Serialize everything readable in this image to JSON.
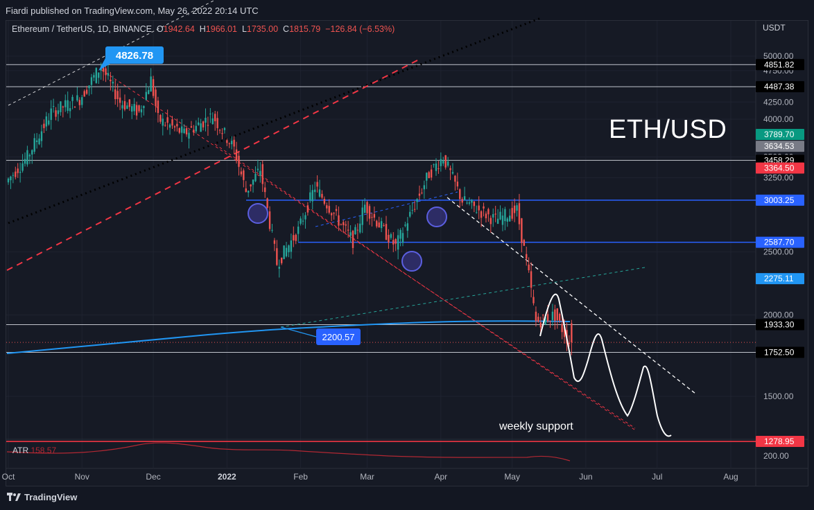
{
  "header": {
    "publish_text": "Fiardi published on TradingView.com, May 26, 2022 20:14 UTC"
  },
  "legend": {
    "symbol": "Ethereum / TetherUS, 1D, BINANCE",
    "o_label": "O",
    "o_value": "1942.64",
    "h_label": "H",
    "h_value": "1966.01",
    "l_label": "L",
    "l_value": "1735.00",
    "c_label": "C",
    "c_value": "1815.79",
    "change": "−126.84 (−6.53%)"
  },
  "axis": {
    "currency": "USDT"
  },
  "watermark_text": "ETH/USD",
  "annotations": {
    "weekly_support": "weekly support",
    "high_callout": "4826.78",
    "low_callout": "2200.57"
  },
  "atr": {
    "label": "ATR",
    "value": "158.57",
    "axis_tick": "200.00"
  },
  "footer": {
    "brand": "TradingView"
  },
  "colors": {
    "background": "#131722",
    "up": "#26a69a",
    "down": "#ef5350",
    "blue_level": "#2962ff",
    "ma": "#2196f3"
  },
  "chart_data": {
    "type": "candlestick",
    "title": "",
    "y_axis": {
      "scale": "log",
      "range": [
        1180,
        5450
      ],
      "ticks": [
        "5000.00",
        "4750.00",
        "4250.00",
        "4000.00",
        "3500.00",
        "3250.00",
        "2500.00",
        "2000.00",
        "1500.00"
      ]
    },
    "x_axis": {
      "ticks": [
        {
          "label": "Oct",
          "date": "2021-10-01"
        },
        {
          "label": "Nov",
          "date": "2021-11-01"
        },
        {
          "label": "Dec",
          "date": "2021-12-01"
        },
        {
          "label": "2022",
          "date": "2022-01-01"
        },
        {
          "label": "Feb",
          "date": "2022-02-01"
        },
        {
          "label": "Mar",
          "date": "2022-03-01"
        },
        {
          "label": "Apr",
          "date": "2022-04-01"
        },
        {
          "label": "May",
          "date": "2022-05-01"
        },
        {
          "label": "Jun",
          "date": "2022-06-01"
        },
        {
          "label": "Jul",
          "date": "2022-07-01"
        },
        {
          "label": "Aug",
          "date": "2022-08-01"
        }
      ]
    },
    "price_path": [
      {
        "date": "2021-10-01",
        "close": 3200
      },
      {
        "date": "2021-10-10",
        "close": 3500
      },
      {
        "date": "2021-10-20",
        "close": 4100
      },
      {
        "date": "2021-11-01",
        "close": 4300
      },
      {
        "date": "2021-11-10",
        "close": 4826
      },
      {
        "date": "2021-11-18",
        "close": 4250
      },
      {
        "date": "2021-11-26",
        "close": 4100
      },
      {
        "date": "2021-12-01",
        "close": 4600
      },
      {
        "date": "2021-12-04",
        "close": 4000
      },
      {
        "date": "2021-12-15",
        "close": 3800
      },
      {
        "date": "2021-12-27",
        "close": 4050
      },
      {
        "date": "2022-01-05",
        "close": 3600
      },
      {
        "date": "2022-01-10",
        "close": 3100
      },
      {
        "date": "2022-01-16",
        "close": 3350
      },
      {
        "date": "2022-01-23",
        "close": 2400
      },
      {
        "date": "2022-02-01",
        "close": 2700
      },
      {
        "date": "2022-02-08",
        "close": 3150
      },
      {
        "date": "2022-02-24",
        "close": 2600
      },
      {
        "date": "2022-03-01",
        "close": 2950
      },
      {
        "date": "2022-03-14",
        "close": 2550
      },
      {
        "date": "2022-03-28",
        "close": 3300
      },
      {
        "date": "2022-04-03",
        "close": 3500
      },
      {
        "date": "2022-04-11",
        "close": 3000
      },
      {
        "date": "2022-04-25",
        "close": 2800
      },
      {
        "date": "2022-05-04",
        "close": 2900
      },
      {
        "date": "2022-05-09",
        "close": 2300
      },
      {
        "date": "2022-05-12",
        "close": 1950
      },
      {
        "date": "2022-05-20",
        "close": 2000
      },
      {
        "date": "2022-05-26",
        "close": 1815.79
      }
    ],
    "ohlc_last": {
      "open": 1942.64,
      "high": 1966.01,
      "low": 1735.0,
      "close": 1815.79
    },
    "price_labels": [
      {
        "value": "4851.82",
        "color": "#000000"
      },
      {
        "value": "4487.38",
        "color": "#000000"
      },
      {
        "value": "3789.70",
        "color": "#089981"
      },
      {
        "value": "3634.53",
        "color": "#787b86"
      },
      {
        "value": "3458.29",
        "color": "#000000"
      },
      {
        "value": "3364.50",
        "color": "#f23645"
      },
      {
        "value": "3003.25",
        "color": "#2962ff"
      },
      {
        "value": "2587.70",
        "color": "#2962ff"
      },
      {
        "value": "2275.11",
        "color": "#2196f3"
      },
      {
        "value": "1933.30",
        "color": "#000000"
      },
      {
        "value": "1752.50",
        "color": "#000000"
      },
      {
        "value": "1278.95",
        "color": "#f23645"
      }
    ],
    "levels": [
      {
        "price": 4851.82,
        "color": "#000000"
      },
      {
        "price": 4487.38,
        "color": "#000000"
      },
      {
        "price": 3458.29,
        "color": "#000000"
      },
      {
        "price": 3003.25,
        "color": "#2962ff"
      },
      {
        "price": 2587.7,
        "color": "#2962ff"
      },
      {
        "price": 1933.3,
        "color": "#000000"
      },
      {
        "price": 1752.5,
        "color": "#000000"
      },
      {
        "price": 1278.95,
        "color": "#f23645"
      }
    ],
    "atr": {
      "value": 158.57
    },
    "legend_position": "top-left"
  }
}
